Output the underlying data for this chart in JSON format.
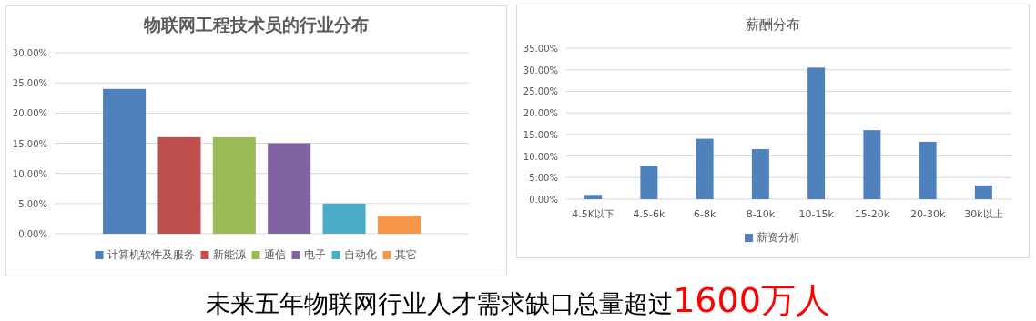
{
  "chart_data": [
    {
      "type": "bar",
      "title": "物联网工程技术员的行业分布",
      "categories": [
        null
      ],
      "series": [
        {
          "name": "计算机软件及服务",
          "color": "#4f81bd",
          "values": [
            24
          ]
        },
        {
          "name": "新能源",
          "color": "#c0504d",
          "values": [
            16
          ]
        },
        {
          "name": "通信",
          "color": "#9bbb59",
          "values": [
            16
          ]
        },
        {
          "name": "电子",
          "color": "#8064a2",
          "values": [
            15
          ]
        },
        {
          "name": "自动化",
          "color": "#4bacc6",
          "values": [
            5
          ]
        },
        {
          "name": "其它",
          "color": "#f79646",
          "values": [
            3
          ]
        }
      ],
      "ylim": [
        0,
        30
      ],
      "yticks": [
        {
          "value": 0,
          "label": "0.00%"
        },
        {
          "value": 5,
          "label": "5.00%"
        },
        {
          "value": 10,
          "label": "10.00%"
        },
        {
          "value": 15,
          "label": "15.00%"
        },
        {
          "value": 20,
          "label": "20.00%"
        },
        {
          "value": 25,
          "label": "25.00%"
        },
        {
          "value": 30,
          "label": "30.00%"
        }
      ],
      "grid": "y",
      "legend": "bottom",
      "annotations": [
        "未来五年物联网行业人才需求缺口总量超过",
        "1600万人"
      ]
    },
    {
      "type": "bar",
      "title": "薪酬分布",
      "categories": [
        "4.5K以下",
        "4.5-6k",
        "6-8k",
        "8-10k",
        "10-15k",
        "15-20k",
        "20-30k",
        "30k以上"
      ],
      "series": [
        {
          "name": "薪资分析",
          "color": "#4f81bd",
          "values": [
            1,
            7.8,
            14,
            11.6,
            30.5,
            16,
            13.3,
            3.2
          ]
        }
      ],
      "ylim": [
        0,
        35
      ],
      "yticks": [
        {
          "value": 0,
          "label": "0.00%"
        },
        {
          "value": 5,
          "label": "5.00%"
        },
        {
          "value": 10,
          "label": "10.00%"
        },
        {
          "value": 15,
          "label": "15.00%"
        },
        {
          "value": 20,
          "label": "20.00%"
        },
        {
          "value": 25,
          "label": "25.00%"
        },
        {
          "value": 30,
          "label": "30.00%"
        },
        {
          "value": 35,
          "label": "35.00%"
        }
      ],
      "grid": "y",
      "legend": "bottom"
    }
  ]
}
